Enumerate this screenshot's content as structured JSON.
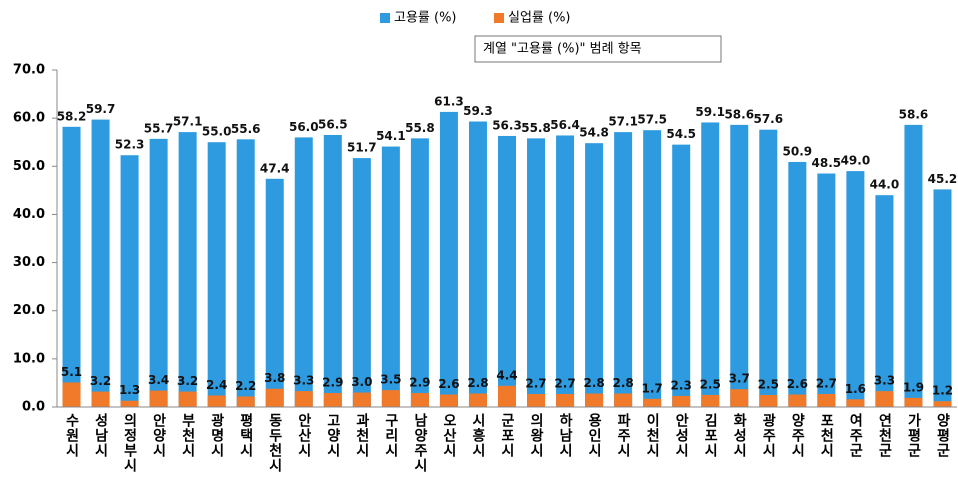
{
  "chart_data": {
    "type": "bar",
    "tooltip": "계열 \"고용률 (%)\" 범례 항목",
    "categories": [
      "수원시",
      "성남시",
      "의정부시",
      "안양시",
      "부천시",
      "광명시",
      "평택시",
      "동두천시",
      "안산시",
      "고양시",
      "과천시",
      "구리시",
      "남양주시",
      "오산시",
      "시흥시",
      "군포시",
      "의왕시",
      "하남시",
      "용인시",
      "파주시",
      "이천시",
      "안성시",
      "김포시",
      "화성시",
      "광주시",
      "양주시",
      "포천시",
      "여주군",
      "연천군",
      "가평군",
      "양평군"
    ],
    "series": [
      {
        "name": "고용률 (%)",
        "color": "#2e9be0",
        "values": [
          58.2,
          59.7,
          52.3,
          55.7,
          57.1,
          55.0,
          55.6,
          47.4,
          56.0,
          56.5,
          51.7,
          54.1,
          55.8,
          61.3,
          59.3,
          56.3,
          55.8,
          56.4,
          54.8,
          57.1,
          57.5,
          54.5,
          59.1,
          58.6,
          57.6,
          50.9,
          48.5,
          49.0,
          44.0,
          58.6,
          45.2
        ],
        "value_labels": [
          "58.2",
          "59.7",
          "52.3",
          "55.7",
          "57.1",
          "55.0",
          "55.6",
          "47.4",
          "56.0",
          "56.5",
          "51.7",
          "54.1",
          "55.8",
          "61.3",
          "59.3",
          "56.3",
          "55.8",
          "56.4",
          "54.8",
          "57.1",
          "57.5",
          "54.5",
          "59.1",
          "58.6",
          "57.6",
          "50.9",
          "48.5",
          "49.0",
          "44.0",
          "58.6",
          "45.2"
        ]
      },
      {
        "name": "실업률 (%)",
        "color": "#f07a2a",
        "values": [
          5.1,
          3.2,
          1.3,
          3.4,
          3.2,
          2.4,
          2.2,
          3.8,
          3.3,
          2.9,
          3.0,
          3.5,
          2.9,
          2.6,
          2.8,
          4.4,
          2.7,
          2.7,
          2.8,
          2.8,
          1.7,
          2.3,
          2.5,
          3.7,
          2.5,
          2.6,
          2.7,
          1.6,
          3.3,
          1.9,
          1.2
        ],
        "value_labels": [
          "5.1",
          "3.2",
          "1.3",
          "3.4",
          "3.2",
          "2.4",
          "2.2",
          "3.8",
          "3.3",
          "2.9",
          "3.0",
          "3.5",
          "2.9",
          "2.6",
          "2.8",
          "4.4",
          "2.7",
          "2.7",
          "2.8",
          "2.8",
          "1.7",
          "2.3",
          "2.5",
          "3.7",
          "2.5",
          "2.6",
          "2.7",
          "1.6",
          "3.3",
          "1.9",
          "1.2"
        ]
      }
    ],
    "ylim": [
      0,
      70
    ],
    "yticks": [
      {
        "value": 0,
        "label": "0.0"
      },
      {
        "value": 10,
        "label": "10.0"
      },
      {
        "value": 20,
        "label": "20.0"
      },
      {
        "value": 30,
        "label": "30.0"
      },
      {
        "value": 40,
        "label": "40.0"
      },
      {
        "value": 50,
        "label": "50.0"
      },
      {
        "value": 60,
        "label": "60.0"
      },
      {
        "value": 70,
        "label": "70.0"
      }
    ],
    "legend": "top"
  }
}
